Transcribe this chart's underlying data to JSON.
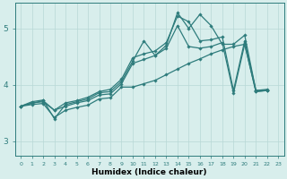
{
  "xlabel": "Humidex (Indice chaleur)",
  "xlim": [
    -0.5,
    23.5
  ],
  "ylim": [
    2.75,
    5.45
  ],
  "yticks": [
    3,
    4,
    5
  ],
  "xticks": [
    0,
    1,
    2,
    3,
    4,
    5,
    6,
    7,
    8,
    9,
    10,
    11,
    12,
    13,
    14,
    15,
    16,
    17,
    18,
    19,
    20,
    21,
    22,
    23
  ],
  "bg_color": "#d8eeec",
  "line_color": "#2e7c7c",
  "grid_color": "#b8d8d6",
  "series1": [
    [
      0,
      3.62
    ],
    [
      1,
      3.7
    ],
    [
      2,
      3.73
    ],
    [
      3,
      3.4
    ],
    [
      4,
      3.65
    ],
    [
      5,
      3.7
    ],
    [
      6,
      3.75
    ],
    [
      7,
      3.86
    ],
    [
      8,
      3.88
    ],
    [
      9,
      4.06
    ],
    [
      10,
      4.42
    ],
    [
      11,
      4.78
    ],
    [
      12,
      4.52
    ],
    [
      13,
      4.7
    ],
    [
      14,
      5.28
    ],
    [
      15,
      5.0
    ],
    [
      16,
      5.25
    ],
    [
      17,
      5.05
    ],
    [
      18,
      4.72
    ],
    [
      19,
      4.72
    ],
    [
      20,
      4.88
    ],
    [
      21,
      3.9
    ],
    [
      22,
      3.9
    ]
  ],
  "series2": [
    [
      0,
      3.62
    ],
    [
      1,
      3.68
    ],
    [
      2,
      3.7
    ],
    [
      3,
      3.55
    ],
    [
      4,
      3.68
    ],
    [
      5,
      3.72
    ],
    [
      6,
      3.78
    ],
    [
      7,
      3.88
    ],
    [
      8,
      3.92
    ],
    [
      9,
      4.1
    ],
    [
      10,
      4.48
    ],
    [
      11,
      4.55
    ],
    [
      12,
      4.6
    ],
    [
      13,
      4.75
    ],
    [
      14,
      5.22
    ],
    [
      15,
      5.12
    ],
    [
      16,
      4.78
    ],
    [
      17,
      4.8
    ],
    [
      18,
      4.85
    ],
    [
      19,
      3.9
    ],
    [
      20,
      4.78
    ],
    [
      21,
      3.9
    ],
    [
      22,
      3.92
    ]
  ],
  "series3": [
    [
      0,
      3.62
    ],
    [
      2,
      3.72
    ],
    [
      3,
      3.55
    ],
    [
      4,
      3.62
    ],
    [
      5,
      3.68
    ],
    [
      6,
      3.72
    ],
    [
      7,
      3.82
    ],
    [
      8,
      3.84
    ],
    [
      9,
      4.02
    ],
    [
      10,
      4.38
    ],
    [
      11,
      4.45
    ],
    [
      12,
      4.52
    ],
    [
      13,
      4.65
    ],
    [
      14,
      5.05
    ],
    [
      15,
      4.68
    ],
    [
      16,
      4.65
    ],
    [
      17,
      4.68
    ],
    [
      18,
      4.75
    ],
    [
      19,
      3.85
    ],
    [
      20,
      4.72
    ],
    [
      21,
      3.88
    ],
    [
      22,
      3.9
    ]
  ],
  "series4": [
    [
      0,
      3.62
    ],
    [
      1,
      3.65
    ],
    [
      2,
      3.67
    ],
    [
      3,
      3.42
    ],
    [
      4,
      3.55
    ],
    [
      5,
      3.6
    ],
    [
      6,
      3.64
    ],
    [
      7,
      3.75
    ],
    [
      8,
      3.77
    ],
    [
      9,
      3.96
    ],
    [
      10,
      3.96
    ],
    [
      11,
      4.02
    ],
    [
      12,
      4.08
    ],
    [
      13,
      4.18
    ],
    [
      14,
      4.28
    ],
    [
      15,
      4.38
    ],
    [
      16,
      4.46
    ],
    [
      17,
      4.55
    ],
    [
      18,
      4.62
    ],
    [
      19,
      4.68
    ],
    [
      20,
      4.72
    ],
    [
      21,
      3.88
    ],
    [
      22,
      3.9
    ]
  ]
}
